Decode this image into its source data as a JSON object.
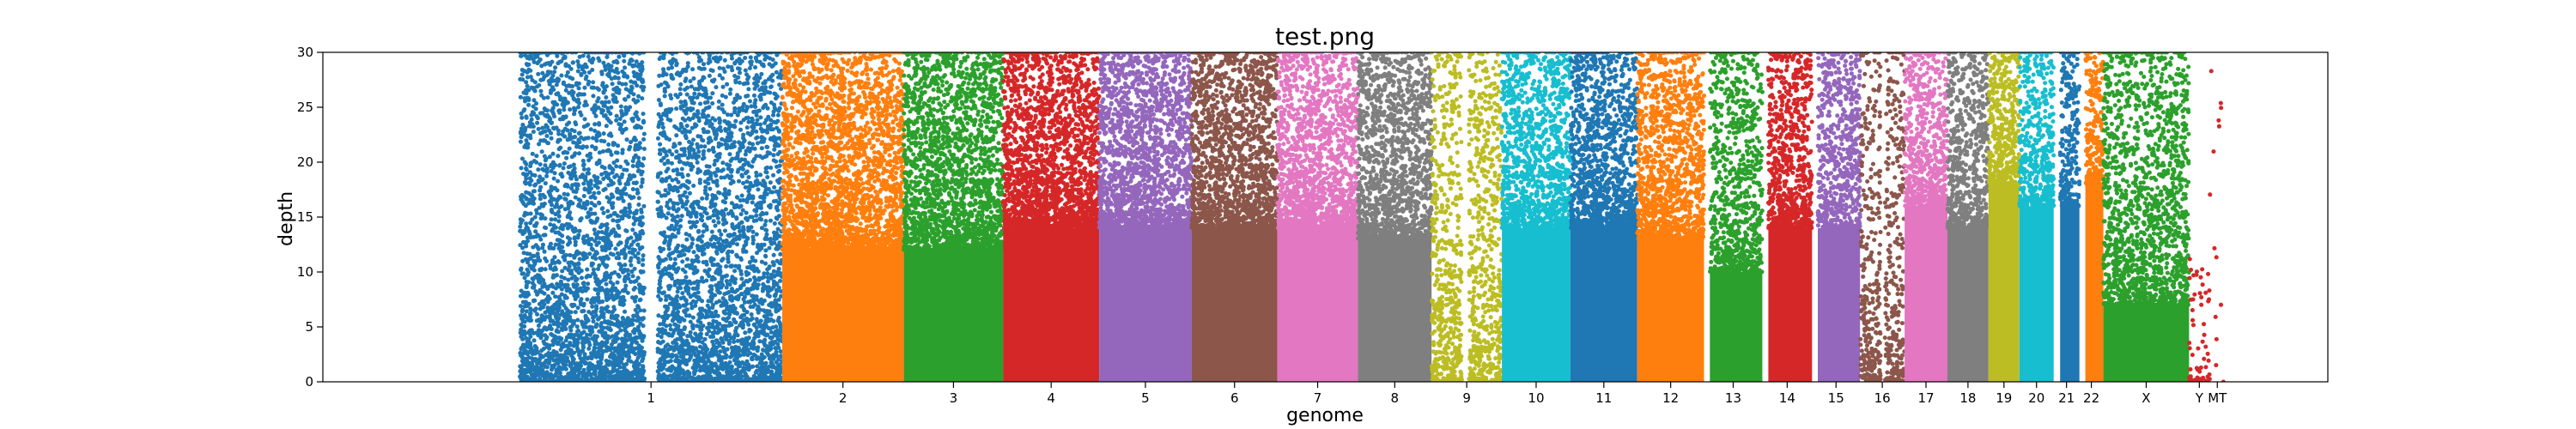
{
  "chart_data": {
    "type": "scatter",
    "title": "test.png",
    "xlabel": "genome",
    "ylabel": "depth",
    "ylim": [
      0,
      30
    ],
    "yticks": [
      0,
      5,
      10,
      15,
      20,
      25,
      30
    ],
    "point_cap": 30,
    "chromosomes": [
      {
        "label": "1",
        "start": 0.045,
        "end": 0.198,
        "color": "#1f77b4",
        "density": 0.9,
        "floor": 0,
        "gaps": [
          [
            0.475,
            0.525
          ]
        ]
      },
      {
        "label": "2",
        "start": 0.198,
        "end": 0.269,
        "color": "#ff7f0e",
        "density": 0.85,
        "floor": 12,
        "gaps": []
      },
      {
        "label": "3",
        "start": 0.269,
        "end": 0.327,
        "color": "#2ca02c",
        "density": 0.8,
        "floor": 12,
        "gaps": []
      },
      {
        "label": "4",
        "start": 0.327,
        "end": 0.383,
        "color": "#d62728",
        "density": 0.8,
        "floor": 14,
        "gaps": []
      },
      {
        "label": "5",
        "start": 0.383,
        "end": 0.437,
        "color": "#9467bd",
        "density": 0.75,
        "floor": 14,
        "gaps": []
      },
      {
        "label": "6",
        "start": 0.437,
        "end": 0.487,
        "color": "#8c564b",
        "density": 0.75,
        "floor": 14,
        "gaps": []
      },
      {
        "label": "7",
        "start": 0.487,
        "end": 0.534,
        "color": "#e377c2",
        "density": 0.75,
        "floor": 14,
        "gaps": []
      },
      {
        "label": "8",
        "start": 0.534,
        "end": 0.577,
        "color": "#7f7f7f",
        "density": 0.7,
        "floor": 13,
        "gaps": []
      },
      {
        "label": "9",
        "start": 0.577,
        "end": 0.618,
        "color": "#bcbd22",
        "density": 0.7,
        "floor": 0,
        "gaps": [
          [
            0.43,
            0.53
          ]
        ]
      },
      {
        "label": "10",
        "start": 0.618,
        "end": 0.658,
        "color": "#17becf",
        "density": 0.7,
        "floor": 14,
        "gaps": []
      },
      {
        "label": "11",
        "start": 0.658,
        "end": 0.697,
        "color": "#1f77b4",
        "density": 0.7,
        "floor": 14,
        "gaps": []
      },
      {
        "label": "12",
        "start": 0.697,
        "end": 0.736,
        "color": "#ff7f0e",
        "density": 0.7,
        "floor": 13,
        "gaps": []
      },
      {
        "label": "13",
        "start": 0.736,
        "end": 0.77,
        "color": "#2ca02c",
        "density": 0.6,
        "floor": 10,
        "gaps": [
          [
            0.0,
            0.1
          ]
        ]
      },
      {
        "label": "14",
        "start": 0.77,
        "end": 0.799,
        "color": "#d62728",
        "density": 0.65,
        "floor": 14,
        "gaps": [
          [
            0.0,
            0.12
          ]
        ]
      },
      {
        "label": "15",
        "start": 0.799,
        "end": 0.827,
        "color": "#9467bd",
        "density": 0.6,
        "floor": 14,
        "gaps": [
          [
            0.0,
            0.12
          ]
        ]
      },
      {
        "label": "16",
        "start": 0.827,
        "end": 0.853,
        "color": "#8c564b",
        "density": 0.6,
        "floor": 0,
        "gaps": [
          [
            0.46,
            0.56
          ]
        ]
      },
      {
        "label": "17",
        "start": 0.853,
        "end": 0.878,
        "color": "#e377c2",
        "density": 0.6,
        "floor": 16,
        "gaps": []
      },
      {
        "label": "18",
        "start": 0.878,
        "end": 0.902,
        "color": "#7f7f7f",
        "density": 0.6,
        "floor": 14,
        "gaps": []
      },
      {
        "label": "19",
        "start": 0.902,
        "end": 0.92,
        "color": "#bcbd22",
        "density": 0.55,
        "floor": 18,
        "gaps": []
      },
      {
        "label": "20",
        "start": 0.92,
        "end": 0.94,
        "color": "#17becf",
        "density": 0.55,
        "floor": 16,
        "gaps": []
      },
      {
        "label": "21",
        "start": 0.94,
        "end": 0.955,
        "color": "#1f77b4",
        "density": 0.5,
        "floor": 16,
        "gaps": [
          [
            0.0,
            0.25
          ]
        ]
      },
      {
        "label": "22",
        "start": 0.955,
        "end": 0.969,
        "color": "#ff7f0e",
        "density": 0.5,
        "floor": 18,
        "gaps": [
          [
            0.0,
            0.25
          ]
        ]
      },
      {
        "label": "X",
        "start": 0.969,
        "end": 1.019,
        "color": "#2ca02c",
        "density": 0.7,
        "floor": 7,
        "gaps": []
      },
      {
        "label": "Y",
        "start": 1.019,
        "end": 1.031,
        "color": "#d62728",
        "density": 0.2,
        "floor": 0,
        "gaps": [],
        "sparse": true
      },
      {
        "label": "MT",
        "start": 1.031,
        "end": 1.04,
        "color": "#d62728",
        "density": 0.05,
        "floor": 0,
        "gaps": [],
        "sparse": true
      }
    ]
  }
}
